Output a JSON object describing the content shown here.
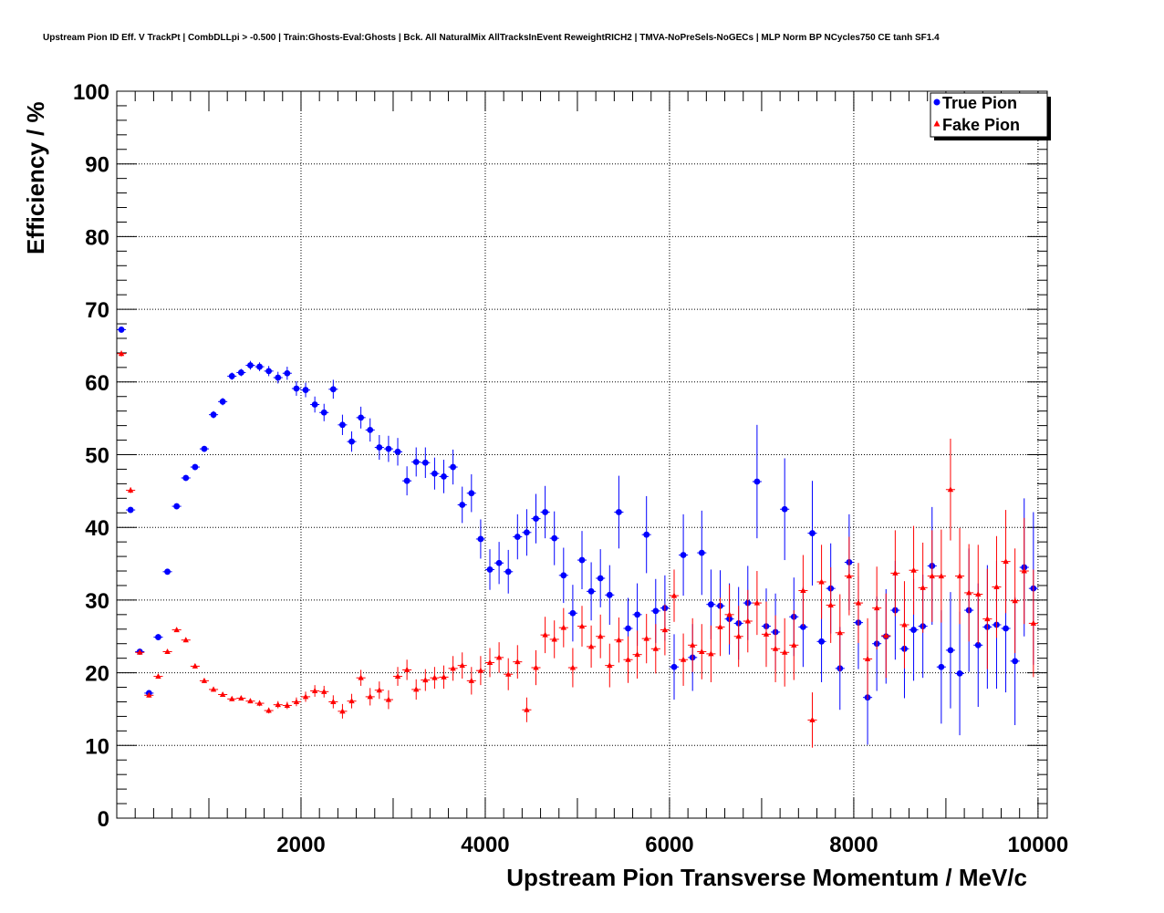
{
  "chart_data": {
    "type": "scatter",
    "title": "Upstream Pion ID Eff. V TrackPt | CombDLLpi > -0.500 | Train:Ghosts-Eval:Ghosts | Bck. All NaturalMix AllTracksInEvent ReweightRICH2 | TMVA-NoPreSels-NoGECs | MLP Norm BP NCycles750 CE tanh SF1.4",
    "xlabel": "Upstream Pion Transverse Momentum / MeV/c",
    "ylabel": "Efficiency / %",
    "xlim": [
      0,
      10100
    ],
    "ylim": [
      0,
      100
    ],
    "x_ticks": [
      2000,
      4000,
      6000,
      8000,
      10000
    ],
    "x_tick_labels": [
      "2000",
      "4000",
      "6000",
      "8000",
      "10000"
    ],
    "y_ticks": [
      0,
      10,
      20,
      30,
      40,
      50,
      60,
      70,
      80,
      90,
      100
    ],
    "y_tick_labels": [
      "0",
      "10",
      "20",
      "30",
      "40",
      "50",
      "60",
      "70",
      "80",
      "90",
      "100"
    ],
    "grid": true,
    "legend_position": "top-right",
    "series": [
      {
        "name": "True Pion",
        "marker": "circle",
        "color": "#0000ff",
        "points": [
          [
            50,
            67.2,
            0.4
          ],
          [
            150,
            42.4,
            0.4
          ],
          [
            250,
            22.9,
            0.4
          ],
          [
            350,
            17.2,
            0.4
          ],
          [
            450,
            24.9,
            0.4
          ],
          [
            550,
            33.9,
            0.4
          ],
          [
            650,
            42.9,
            0.4
          ],
          [
            750,
            46.8,
            0.4
          ],
          [
            850,
            48.3,
            0.4
          ],
          [
            950,
            50.8,
            0.4
          ],
          [
            1050,
            55.5,
            0.5
          ],
          [
            1150,
            57.3,
            0.5
          ],
          [
            1250,
            60.8,
            0.5
          ],
          [
            1350,
            61.3,
            0.5
          ],
          [
            1450,
            62.3,
            0.6
          ],
          [
            1550,
            62.1,
            0.6
          ],
          [
            1650,
            61.5,
            0.7
          ],
          [
            1750,
            60.6,
            0.8
          ],
          [
            1850,
            61.2,
            0.9
          ],
          [
            1950,
            59.1,
            1.0
          ],
          [
            2050,
            58.9,
            1.0
          ],
          [
            2150,
            56.9,
            1.1
          ],
          [
            2250,
            55.8,
            1.2
          ],
          [
            2350,
            59.0,
            1.3
          ],
          [
            2450,
            54.1,
            1.4
          ],
          [
            2550,
            51.8,
            1.4
          ],
          [
            2650,
            55.1,
            1.5
          ],
          [
            2750,
            53.4,
            1.6
          ],
          [
            2850,
            51.0,
            1.7
          ],
          [
            2950,
            50.8,
            1.8
          ],
          [
            3050,
            50.4,
            1.9
          ],
          [
            3150,
            46.4,
            2.0
          ],
          [
            3250,
            49.0,
            2.0
          ],
          [
            3350,
            48.9,
            2.1
          ],
          [
            3450,
            47.4,
            2.2
          ],
          [
            3550,
            47.0,
            2.3
          ],
          [
            3650,
            48.3,
            2.4
          ],
          [
            3750,
            43.1,
            2.5
          ],
          [
            3850,
            44.7,
            2.6
          ],
          [
            3950,
            38.4,
            2.7
          ],
          [
            4050,
            34.2,
            2.8
          ],
          [
            4150,
            35.1,
            2.9
          ],
          [
            4250,
            33.9,
            3.0
          ],
          [
            4350,
            38.7,
            3.1
          ],
          [
            4450,
            39.3,
            3.2
          ],
          [
            4550,
            41.2,
            3.4
          ],
          [
            4650,
            42.1,
            3.6
          ],
          [
            4750,
            38.5,
            3.7
          ],
          [
            4850,
            33.4,
            3.8
          ],
          [
            4950,
            28.2,
            3.9
          ],
          [
            5050,
            35.5,
            4.0
          ],
          [
            5150,
            31.2,
            4.0
          ],
          [
            5250,
            33.0,
            4.0
          ],
          [
            5350,
            30.7,
            4.1
          ],
          [
            5450,
            42.1,
            5.0
          ],
          [
            5550,
            26.1,
            4.2
          ],
          [
            5650,
            28.0,
            4.3
          ],
          [
            5750,
            39.0,
            5.3
          ],
          [
            5850,
            28.5,
            4.4
          ],
          [
            5950,
            28.9,
            4.5
          ],
          [
            6050,
            20.8,
            4.5
          ],
          [
            6150,
            36.2,
            5.6
          ],
          [
            6250,
            22.1,
            4.6
          ],
          [
            6350,
            36.5,
            5.8
          ],
          [
            6450,
            29.4,
            4.8
          ],
          [
            6550,
            29.2,
            4.9
          ],
          [
            6650,
            27.4,
            4.9
          ],
          [
            6750,
            26.8,
            5.0
          ],
          [
            6850,
            29.6,
            5.1
          ],
          [
            6950,
            46.3,
            7.8
          ],
          [
            7050,
            26.4,
            5.2
          ],
          [
            7150,
            25.6,
            5.3
          ],
          [
            7250,
            42.5,
            7.0
          ],
          [
            7350,
            27.7,
            5.4
          ],
          [
            7450,
            26.3,
            5.5
          ],
          [
            7550,
            39.2,
            7.2
          ],
          [
            7650,
            24.3,
            5.6
          ],
          [
            7750,
            31.6,
            6.2
          ],
          [
            7850,
            20.6,
            5.7
          ],
          [
            7950,
            35.2,
            6.6
          ],
          [
            8050,
            26.9,
            6.4
          ],
          [
            8150,
            16.6,
            6.5
          ],
          [
            8250,
            24.0,
            6.5
          ],
          [
            8350,
            25.0,
            6.5
          ],
          [
            8450,
            28.6,
            6.8
          ],
          [
            8550,
            23.3,
            6.8
          ],
          [
            8650,
            25.9,
            7.0
          ],
          [
            8750,
            26.4,
            7.1
          ],
          [
            8850,
            34.7,
            8.1
          ],
          [
            8950,
            20.8,
            7.8
          ],
          [
            9050,
            23.1,
            8.0
          ],
          [
            9150,
            19.9,
            8.5
          ],
          [
            9250,
            28.6,
            8.5
          ],
          [
            9350,
            23.8,
            8.5
          ],
          [
            9450,
            26.3,
            8.5
          ],
          [
            9550,
            26.6,
            8.8
          ],
          [
            9650,
            26.1,
            8.8
          ],
          [
            9750,
            21.6,
            8.8
          ],
          [
            9850,
            34.5,
            9.5
          ],
          [
            9950,
            31.6,
            10.5
          ]
        ]
      },
      {
        "name": "Fake Pion",
        "marker": "triangle",
        "color": "#ff0000",
        "points": [
          [
            50,
            63.9,
            0.4
          ],
          [
            150,
            45.1,
            0.4
          ],
          [
            250,
            22.8,
            0.3
          ],
          [
            350,
            16.9,
            0.3
          ],
          [
            450,
            19.5,
            0.3
          ],
          [
            550,
            22.9,
            0.3
          ],
          [
            650,
            25.9,
            0.3
          ],
          [
            750,
            24.5,
            0.3
          ],
          [
            850,
            20.9,
            0.3
          ],
          [
            950,
            18.9,
            0.3
          ],
          [
            1050,
            17.7,
            0.3
          ],
          [
            1150,
            17.0,
            0.3
          ],
          [
            1250,
            16.4,
            0.3
          ],
          [
            1350,
            16.5,
            0.3
          ],
          [
            1450,
            16.1,
            0.3
          ],
          [
            1550,
            15.8,
            0.4
          ],
          [
            1650,
            14.8,
            0.4
          ],
          [
            1750,
            15.6,
            0.5
          ],
          [
            1850,
            15.5,
            0.5
          ],
          [
            1950,
            16.0,
            0.6
          ],
          [
            2050,
            16.7,
            0.7
          ],
          [
            2150,
            17.5,
            0.8
          ],
          [
            2250,
            17.4,
            0.8
          ],
          [
            2350,
            16.0,
            0.9
          ],
          [
            2450,
            14.7,
            1.0
          ],
          [
            2550,
            16.1,
            1.0
          ],
          [
            2650,
            19.3,
            1.1
          ],
          [
            2750,
            16.7,
            1.2
          ],
          [
            2850,
            17.6,
            1.2
          ],
          [
            2950,
            16.3,
            1.3
          ],
          [
            3050,
            19.5,
            1.3
          ],
          [
            3150,
            20.4,
            1.4
          ],
          [
            3250,
            17.7,
            1.4
          ],
          [
            3350,
            19.0,
            1.5
          ],
          [
            3450,
            19.3,
            1.5
          ],
          [
            3550,
            19.4,
            1.6
          ],
          [
            3650,
            20.6,
            1.7
          ],
          [
            3750,
            21.0,
            1.8
          ],
          [
            3850,
            18.9,
            1.9
          ],
          [
            3950,
            20.3,
            2.0
          ],
          [
            4050,
            21.4,
            2.0
          ],
          [
            4150,
            22.1,
            2.1
          ],
          [
            4250,
            19.8,
            2.2
          ],
          [
            4350,
            21.5,
            2.3
          ],
          [
            4450,
            14.9,
            1.7
          ],
          [
            4550,
            20.7,
            2.4
          ],
          [
            4650,
            25.2,
            2.5
          ],
          [
            4750,
            24.6,
            2.6
          ],
          [
            4850,
            26.2,
            2.7
          ],
          [
            4950,
            20.7,
            2.7
          ],
          [
            5050,
            26.4,
            2.8
          ],
          [
            5150,
            23.6,
            2.9
          ],
          [
            5250,
            25.0,
            3.0
          ],
          [
            5350,
            21.0,
            3.0
          ],
          [
            5450,
            24.5,
            3.1
          ],
          [
            5550,
            21.8,
            3.2
          ],
          [
            5650,
            22.5,
            3.3
          ],
          [
            5750,
            24.7,
            3.4
          ],
          [
            5850,
            23.3,
            3.4
          ],
          [
            5950,
            25.9,
            3.5
          ],
          [
            6050,
            30.6,
            3.6
          ],
          [
            6150,
            21.8,
            3.6
          ],
          [
            6250,
            23.8,
            3.7
          ],
          [
            6350,
            22.9,
            3.8
          ],
          [
            6450,
            22.6,
            3.9
          ],
          [
            6550,
            26.3,
            4.0
          ],
          [
            6650,
            28.0,
            4.1
          ],
          [
            6750,
            25.0,
            4.2
          ],
          [
            6850,
            27.1,
            4.3
          ],
          [
            6950,
            29.6,
            4.4
          ],
          [
            7050,
            25.3,
            4.5
          ],
          [
            7150,
            23.3,
            4.6
          ],
          [
            7250,
            22.8,
            4.7
          ],
          [
            7350,
            23.8,
            4.8
          ],
          [
            7450,
            31.3,
            4.9
          ],
          [
            7550,
            13.5,
            3.8
          ],
          [
            7650,
            32.5,
            5.1
          ],
          [
            7750,
            29.3,
            5.2
          ],
          [
            7850,
            25.5,
            5.3
          ],
          [
            7950,
            33.3,
            5.4
          ],
          [
            8050,
            29.6,
            5.5
          ],
          [
            8150,
            21.9,
            5.6
          ],
          [
            8250,
            28.9,
            5.7
          ],
          [
            8350,
            25.1,
            5.8
          ],
          [
            8450,
            33.7,
            5.9
          ],
          [
            8550,
            26.6,
            6.0
          ],
          [
            8650,
            34.1,
            6.1
          ],
          [
            8750,
            31.7,
            6.2
          ],
          [
            8850,
            33.3,
            6.3
          ],
          [
            8950,
            33.3,
            6.4
          ],
          [
            9050,
            45.2,
            7.0
          ],
          [
            9150,
            33.3,
            6.6
          ],
          [
            9250,
            31.0,
            6.7
          ],
          [
            9350,
            30.8,
            6.8
          ],
          [
            9450,
            27.4,
            6.9
          ],
          [
            9550,
            31.8,
            7.0
          ],
          [
            9650,
            35.3,
            7.1
          ],
          [
            9750,
            29.9,
            7.2
          ],
          [
            9850,
            34.0,
            7.3
          ],
          [
            9950,
            26.8,
            7.4
          ]
        ]
      }
    ]
  }
}
